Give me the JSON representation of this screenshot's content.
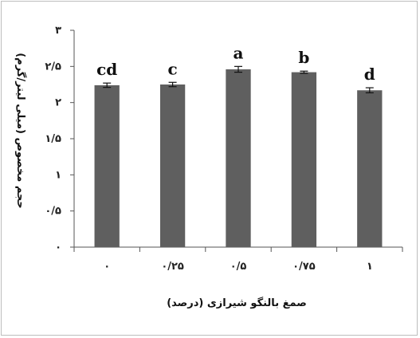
{
  "chart_data": {
    "type": "bar",
    "categories": [
      "۰",
      "۰/۲۵",
      "۰/۵",
      "۰/۷۵",
      "۱"
    ],
    "values": [
      2.24,
      2.25,
      2.46,
      2.42,
      2.17
    ],
    "errors": [
      0.03,
      0.03,
      0.04,
      0.015,
      0.035
    ],
    "letters": [
      "cd",
      "c",
      "a",
      "b",
      "d"
    ],
    "xlabel": "صمغ بالنگو شیرازی (درصد)",
    "ylabel": "حجم مخصوص (میلی لیتر/گرم)",
    "ylim": [
      0,
      3
    ],
    "yticks": [
      0,
      0.5,
      1,
      1.5,
      2,
      2.5,
      3
    ],
    "ytick_labels": [
      "۰",
      "۰/۵",
      "۱",
      "۱/۵",
      "۲",
      "۲/۵",
      "۳"
    ],
    "bar_color": "#5f5f5f",
    "grid": false,
    "legend": "none"
  }
}
